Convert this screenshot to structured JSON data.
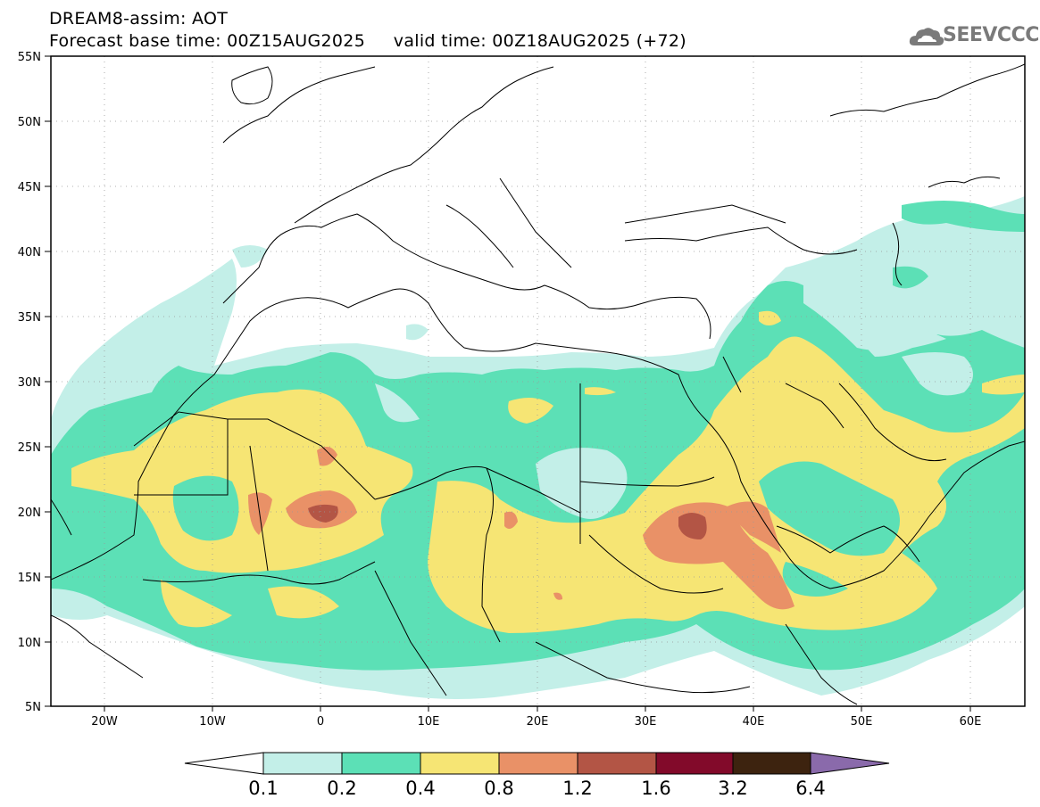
{
  "header": {
    "title_line1": "DREAM8-assim: AOT",
    "title_line2": "Forecast base time: 00Z15AUG2025     valid time: 00Z18AUG2025 (+72)"
  },
  "logo": {
    "text": "SEEVCCC",
    "icon": "cloud-icon",
    "color": "#7a7a7a"
  },
  "map": {
    "lon_range": [
      -25,
      65
    ],
    "lat_range": [
      5,
      55
    ],
    "lat_labels": [
      "55N",
      "50N",
      "45N",
      "40N",
      "35N",
      "30N",
      "25N",
      "20N",
      "15N",
      "10N",
      "5N"
    ],
    "lon_labels": [
      "20W",
      "10W",
      "0",
      "10E",
      "20E",
      "30E",
      "40E",
      "50E",
      "60E"
    ],
    "grid": "dotted"
  },
  "legend": {
    "bins": [
      "0.1",
      "0.2",
      "0.4",
      "0.8",
      "1.2",
      "1.6",
      "3.2",
      "6.4"
    ],
    "colors": [
      "#c3efe8",
      "#5ce0b6",
      "#f6e574",
      "#e99167",
      "#b35545",
      "#820a2a",
      "#3d230f",
      "#8a6aab"
    ],
    "below_color": "#ffffff"
  }
}
